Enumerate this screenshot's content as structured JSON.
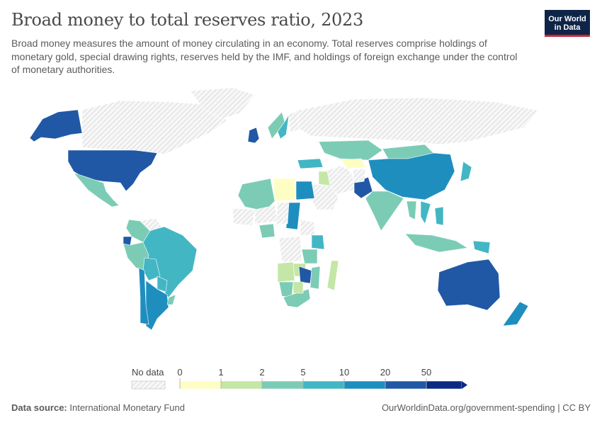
{
  "header": {
    "title": "Broad money to total reserves ratio, 2023",
    "subtitle": "Broad money measures the amount of money circulating in an economy. Total reserves comprise holdings of monetary gold, special drawing rights, reserves held by the IMF, and holdings of foreign exchange under the control of monetary authorities."
  },
  "logo": {
    "line1": "Our World",
    "line2": "in Data"
  },
  "legend": {
    "no_data_label": "No data",
    "ticks": [
      "0",
      "1",
      "2",
      "5",
      "10",
      "20",
      "50"
    ],
    "colors": [
      "#fefec4",
      "#c4e6a6",
      "#7cccb5",
      "#43b6c4",
      "#1e8ebf",
      "#2158a6",
      "#0c2a83"
    ]
  },
  "footer": {
    "source_label": "Data source:",
    "source": "International Monetary Fund",
    "url": "OurWorldinData.org/government-spending | CC BY"
  },
  "chart_data": {
    "type": "map",
    "title": "Broad money to total reserves ratio, 2023",
    "bins": [
      0,
      1,
      2,
      5,
      10,
      20,
      50
    ],
    "values": [
      {
        "country": "United States",
        "bin": "20-50"
      },
      {
        "country": "Alaska (United States)",
        "bin": "20-50"
      },
      {
        "country": "Canada",
        "bin": "No data"
      },
      {
        "country": "Greenland",
        "bin": "No data"
      },
      {
        "country": "Mexico",
        "bin": "2-5"
      },
      {
        "country": "Brazil",
        "bin": "5-10"
      },
      {
        "country": "Argentina",
        "bin": "10-20"
      },
      {
        "country": "Colombia",
        "bin": "2-5"
      },
      {
        "country": "Peru",
        "bin": "2-5"
      },
      {
        "country": "Bolivia",
        "bin": "5-10"
      },
      {
        "country": "Chile",
        "bin": "10-20"
      },
      {
        "country": "Venezuela",
        "bin": "No data"
      },
      {
        "country": "Ecuador",
        "bin": "20-50"
      },
      {
        "country": "Paraguay",
        "bin": "5-10"
      },
      {
        "country": "Uruguay",
        "bin": "2-5"
      },
      {
        "country": "United Kingdom",
        "bin": "20-50"
      },
      {
        "country": "Norway",
        "bin": "2-5"
      },
      {
        "country": "Sweden",
        "bin": "5-10"
      },
      {
        "country": "Finland",
        "bin": "No data"
      },
      {
        "country": "Russia",
        "bin": "No data"
      },
      {
        "country": "Kazakhstan",
        "bin": "2-5"
      },
      {
        "country": "Mongolia",
        "bin": "2-5"
      },
      {
        "country": "China",
        "bin": "10-20"
      },
      {
        "country": "Japan",
        "bin": "5-10"
      },
      {
        "country": "India",
        "bin": "2-5"
      },
      {
        "country": "Pakistan",
        "bin": "20-50"
      },
      {
        "country": "Iran",
        "bin": "No data"
      },
      {
        "country": "Saudi Arabia",
        "bin": "No data"
      },
      {
        "country": "Turkey",
        "bin": "5-10"
      },
      {
        "country": "Egypt",
        "bin": "10-20"
      },
      {
        "country": "Libya",
        "bin": "0-1"
      },
      {
        "country": "Algeria",
        "bin": "2-5"
      },
      {
        "country": "Sudan",
        "bin": "10-20"
      },
      {
        "country": "Ethiopia",
        "bin": "No data"
      },
      {
        "country": "Kenya",
        "bin": "5-10"
      },
      {
        "country": "Nigeria",
        "bin": "2-5"
      },
      {
        "country": "DR Congo",
        "bin": "No data"
      },
      {
        "country": "Angola",
        "bin": "1-2"
      },
      {
        "country": "Zambia",
        "bin": "1-2"
      },
      {
        "country": "Zimbabwe",
        "bin": "20-50"
      },
      {
        "country": "Namibia",
        "bin": "2-5"
      },
      {
        "country": "South Africa",
        "bin": "2-5"
      },
      {
        "country": "Madagascar",
        "bin": "1-2"
      },
      {
        "country": "Mozambique",
        "bin": "2-5"
      },
      {
        "country": "Thailand",
        "bin": "2-5"
      },
      {
        "country": "Vietnam",
        "bin": "5-10"
      },
      {
        "country": "Indonesia",
        "bin": "2-5"
      },
      {
        "country": "Philippines",
        "bin": "5-10"
      },
      {
        "country": "Papua New Guinea",
        "bin": "5-10"
      },
      {
        "country": "Australia",
        "bin": "20-50"
      },
      {
        "country": "New Zealand",
        "bin": "10-20"
      },
      {
        "country": "Afghanistan",
        "bin": "No data"
      },
      {
        "country": "Uzbekistan",
        "bin": "0-1"
      },
      {
        "country": "Turkmenistan",
        "bin": "No data"
      },
      {
        "country": "Iraq",
        "bin": "1-2"
      },
      {
        "country": "Mali",
        "bin": "No data"
      },
      {
        "country": "Niger",
        "bin": "No data"
      },
      {
        "country": "Chad",
        "bin": "No data"
      },
      {
        "country": "Tanzania",
        "bin": "2-5"
      },
      {
        "country": "Botswana",
        "bin": "1-2"
      }
    ]
  }
}
